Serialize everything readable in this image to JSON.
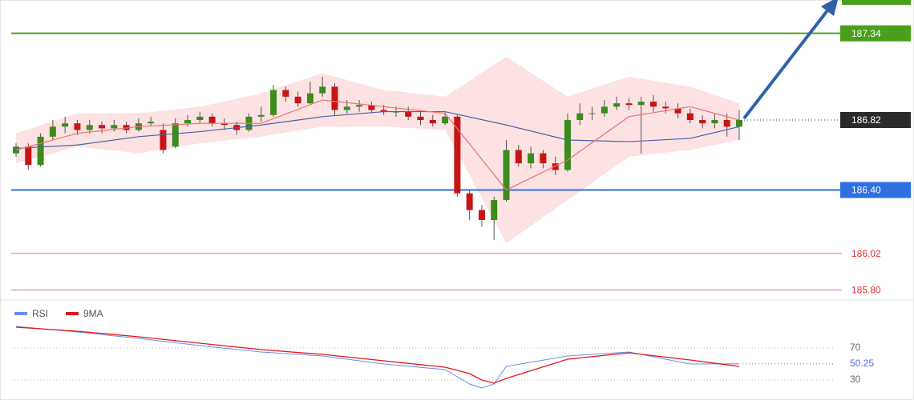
{
  "chart_data": [
    {
      "type": "candlestick",
      "ylim": [
        185.74,
        187.54
      ],
      "up_color": "#3c8c1c",
      "down_color": "#c81414",
      "open": [
        186.62,
        186.66,
        186.55,
        186.72,
        186.78,
        186.8,
        186.76,
        186.79,
        186.77,
        186.79,
        186.76,
        186.8,
        186.76,
        186.66,
        186.8,
        186.82,
        186.84,
        186.8,
        186.79,
        186.76,
        186.84,
        186.85,
        187.0,
        186.96,
        186.92,
        186.98,
        187.02,
        186.88,
        186.9,
        186.91,
        186.88,
        186.87,
        186.87,
        186.84,
        186.82,
        186.8,
        186.84,
        186.38,
        186.28,
        186.22,
        186.34,
        186.64,
        186.56,
        186.62,
        186.56,
        186.52,
        186.82,
        186.86,
        186.86,
        186.9,
        186.92,
        186.91,
        186.93,
        186.9,
        186.89,
        186.86,
        186.82,
        186.8,
        186.82,
        186.78
      ],
      "high": [
        186.68,
        186.68,
        186.74,
        186.82,
        186.84,
        186.82,
        186.82,
        186.81,
        186.82,
        186.81,
        186.83,
        186.84,
        186.8,
        186.83,
        186.85,
        186.87,
        186.86,
        186.83,
        186.81,
        186.86,
        186.9,
        187.03,
        187.02,
        186.99,
        187.05,
        187.08,
        187.04,
        186.94,
        186.94,
        186.93,
        186.91,
        186.9,
        186.9,
        186.87,
        186.85,
        186.87,
        186.85,
        186.4,
        186.31,
        186.36,
        186.7,
        186.67,
        186.66,
        186.64,
        186.6,
        186.86,
        186.92,
        186.9,
        186.94,
        186.96,
        186.95,
        186.96,
        186.97,
        186.93,
        186.92,
        186.89,
        186.85,
        186.86,
        186.86,
        186.88
      ],
      "low": [
        186.6,
        186.52,
        186.54,
        186.7,
        186.74,
        186.73,
        186.74,
        186.74,
        186.75,
        186.74,
        186.75,
        186.78,
        186.62,
        186.65,
        186.78,
        186.8,
        186.78,
        186.76,
        186.73,
        186.75,
        186.81,
        186.84,
        186.93,
        186.9,
        186.91,
        186.96,
        186.85,
        186.86,
        186.87,
        186.86,
        186.85,
        186.84,
        186.82,
        186.79,
        186.78,
        186.79,
        186.36,
        186.22,
        186.18,
        186.1,
        186.33,
        186.54,
        186.53,
        186.53,
        186.49,
        186.51,
        186.79,
        186.82,
        186.84,
        186.88,
        186.88,
        186.62,
        186.87,
        186.86,
        186.83,
        186.8,
        186.77,
        186.77,
        186.72,
        186.7
      ],
      "close": [
        186.66,
        186.55,
        186.72,
        186.78,
        186.8,
        186.76,
        186.79,
        186.77,
        186.79,
        186.76,
        186.8,
        186.81,
        186.64,
        186.8,
        186.82,
        186.84,
        186.8,
        186.79,
        186.76,
        186.84,
        186.85,
        187.0,
        186.96,
        186.92,
        186.98,
        187.02,
        186.88,
        186.9,
        186.91,
        186.88,
        186.87,
        186.87,
        186.84,
        186.82,
        186.8,
        186.84,
        186.38,
        186.28,
        186.22,
        186.34,
        186.64,
        186.56,
        186.62,
        186.56,
        186.52,
        186.82,
        186.86,
        186.86,
        186.9,
        186.92,
        186.91,
        186.93,
        186.9,
        186.89,
        186.86,
        186.82,
        186.8,
        186.82,
        186.78,
        186.82
      ],
      "band": {
        "color": "#fbd6d6",
        "x": [
          0,
          5,
          10,
          15,
          20,
          25,
          30,
          35,
          40,
          45,
          50,
          55,
          59
        ],
        "upper": [
          186.74,
          186.86,
          186.86,
          186.9,
          186.98,
          187.1,
          187.0,
          186.96,
          187.2,
          186.96,
          187.08,
          187.02,
          186.92
        ],
        "lower": [
          186.56,
          186.66,
          186.62,
          186.68,
          186.72,
          186.78,
          186.78,
          186.76,
          186.08,
          186.34,
          186.6,
          186.64,
          186.7
        ]
      },
      "overlays": [
        {
          "color": "#4a62a8",
          "x": [
            0,
            5,
            10,
            15,
            20,
            25,
            30,
            35,
            40,
            45,
            50,
            55,
            59
          ],
          "values": [
            186.65,
            186.67,
            186.72,
            186.75,
            186.79,
            186.84,
            186.87,
            186.87,
            186.79,
            186.7,
            186.69,
            186.71,
            186.78
          ]
        },
        {
          "color": "#f07070",
          "x": [
            0,
            5,
            10,
            15,
            20,
            25,
            30,
            35,
            40,
            45,
            50,
            55,
            59
          ],
          "values": [
            186.64,
            186.74,
            186.78,
            186.8,
            186.8,
            186.94,
            186.9,
            186.86,
            186.4,
            186.58,
            186.84,
            186.9,
            186.82
          ]
        }
      ],
      "levels": [
        {
          "value": 187.34,
          "color": "#4aa01c",
          "box": true,
          "dash": false
        },
        {
          "value": 186.82,
          "color": "#2a2a2a",
          "box": true,
          "dash": true
        },
        {
          "value": {
            "value": 186.4,
            "label": "186.40"
          },
          "color": "#2f6fe0",
          "box": true,
          "dash": false
        },
        {
          "value": 186.02,
          "color": "#e03030",
          "box": false,
          "dash": false
        },
        {
          "value": {
            "value": 185.8,
            "label": "185.80"
          },
          "color": "#e03030",
          "box": false,
          "dash": false
        }
      ]
    },
    {
      "type": "line",
      "ylim": [
        15,
        120
      ],
      "yticks": [
        70,
        30
      ],
      "current": 50.25,
      "current_color": "#4a6ce8",
      "series": [
        {
          "name": "RSI",
          "color": "#6b8fe8",
          "x": [
            0,
            5,
            10,
            15,
            20,
            25,
            30,
            35,
            37,
            38,
            39,
            40,
            45,
            50,
            55,
            59
          ],
          "values": [
            97,
            90,
            82,
            73,
            65,
            60,
            50,
            43,
            25,
            20,
            25,
            47,
            60,
            65,
            50,
            50.25
          ]
        },
        {
          "name": "9MA",
          "color": "#e01818",
          "x": [
            0,
            5,
            10,
            15,
            20,
            25,
            30,
            35,
            37,
            38,
            39,
            40,
            45,
            50,
            55,
            59
          ],
          "values": [
            96,
            91,
            84,
            76,
            68,
            62,
            54,
            46,
            38,
            30,
            26,
            32,
            56,
            64,
            55,
            47
          ]
        }
      ]
    }
  ]
}
